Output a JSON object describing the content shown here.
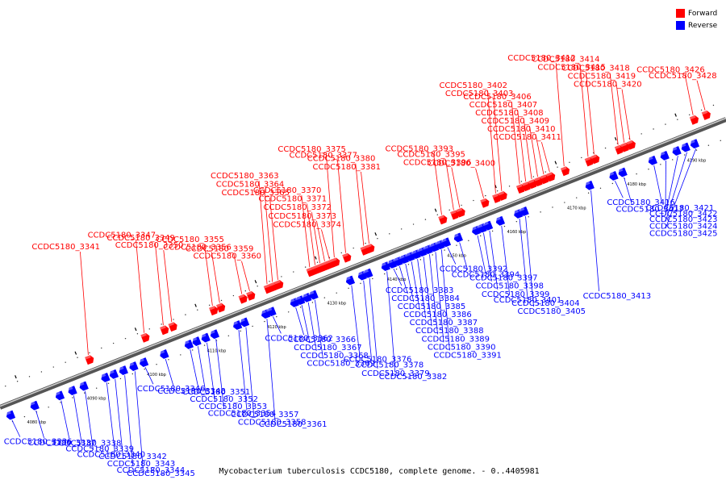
{
  "legend": {
    "forward": {
      "label": "Forward",
      "color": "#ff0000"
    },
    "reverse": {
      "label": "Reverse",
      "color": "#0000ff"
    }
  },
  "caption": "Mycobacterium tuberculosis CCDC5180, complete genome. - 0..4405981",
  "axis": {
    "start_kbp": 4076,
    "end_kbp": 4197,
    "tick_labels": [
      "4080 kbp",
      "4090 kbp",
      "4100 kbp",
      "4110 kbp",
      "4120 kbp",
      "4130 kbp",
      "4140 kbp",
      "4150 kbp",
      "4160 kbp",
      "4170 kbp",
      "4180 kbp",
      "4190 kbp"
    ]
  },
  "genes": [
    {
      "name": "CCDC5180_3336",
      "strand": "reverse",
      "kbp": 4077.0
    },
    {
      "name": "CCDC5180_3337",
      "strand": "reverse",
      "kbp": 4081.0
    },
    {
      "name": "CCDC5180_3338",
      "strand": "reverse",
      "kbp": 4085.2
    },
    {
      "name": "CCDC5180_3339",
      "strand": "reverse",
      "kbp": 4087.3
    },
    {
      "name": "CCDC5180_3340",
      "strand": "reverse",
      "kbp": 4089.2
    },
    {
      "name": "CCDC5180_3341",
      "strand": "forward",
      "kbp": 4091.7
    },
    {
      "name": "CCDC5180_3342",
      "strand": "reverse",
      "kbp": 4092.8
    },
    {
      "name": "CCDC5180_3343",
      "strand": "reverse",
      "kbp": 4094.2
    },
    {
      "name": "CCDC5180_3344",
      "strand": "reverse",
      "kbp": 4095.8
    },
    {
      "name": "CCDC5180_3345",
      "strand": "reverse",
      "kbp": 4097.5
    },
    {
      "name": "CCDC5180_3346",
      "strand": "reverse",
      "kbp": 4099.2
    },
    {
      "name": "CCDC5180_3347",
      "strand": "forward",
      "kbp": 4101.0
    },
    {
      "name": "CCDC5180_3348",
      "strand": "reverse",
      "kbp": 4102.6
    },
    {
      "name": "CCDC5180_3349",
      "strand": "forward",
      "kbp": 4104.2
    },
    {
      "name": "CCDC5180_3350",
      "strand": "forward",
      "kbp": 4105.6
    },
    {
      "name": "CCDC5180_3351",
      "strand": "reverse",
      "kbp": 4106.7
    },
    {
      "name": "CCDC5180_3352",
      "strand": "reverse",
      "kbp": 4108.0
    },
    {
      "name": "CCDC5180_3353",
      "strand": "reverse",
      "kbp": 4109.5
    },
    {
      "name": "CCDC5180_3354",
      "strand": "reverse",
      "kbp": 4111.0
    },
    {
      "name": "CCDC5180_3355",
      "strand": "forward",
      "kbp": 4112.4
    },
    {
      "name": "CCDC5180_3356",
      "strand": "forward",
      "kbp": 4113.6
    },
    {
      "name": "CCDC5180_3357",
      "strand": "reverse",
      "kbp": 4114.8
    },
    {
      "name": "CCDC5180_3358",
      "strand": "reverse",
      "kbp": 4116.0
    },
    {
      "name": "CCDC5180_3359",
      "strand": "forward",
      "kbp": 4117.3
    },
    {
      "name": "CCDC5180_3360",
      "strand": "forward",
      "kbp": 4118.6
    },
    {
      "name": "CCDC5180_3361",
      "strand": "reverse",
      "kbp": 4119.5
    },
    {
      "name": "CCDC5180_3362",
      "strand": "reverse",
      "kbp": 4120.5
    },
    {
      "name": "CCDC5180_3363",
      "strand": "forward",
      "kbp": 4121.5
    },
    {
      "name": "CCDC5180_3364",
      "strand": "forward",
      "kbp": 4122.4
    },
    {
      "name": "CCDC5180_3365",
      "strand": "forward",
      "kbp": 4123.3
    },
    {
      "name": "CCDC5180_3366",
      "strand": "reverse",
      "kbp": 4124.3
    },
    {
      "name": "CCDC5180_3367",
      "strand": "reverse",
      "kbp": 4125.3
    },
    {
      "name": "CCDC5180_3368",
      "strand": "reverse",
      "kbp": 4126.4
    },
    {
      "name": "CCDC5180_3369",
      "strand": "reverse",
      "kbp": 4127.5
    },
    {
      "name": "CCDC5180_3370",
      "strand": "forward",
      "kbp": 4128.6
    },
    {
      "name": "CCDC5180_3371",
      "strand": "forward",
      "kbp": 4129.5
    },
    {
      "name": "CCDC5180_3372",
      "strand": "forward",
      "kbp": 4130.3
    },
    {
      "name": "CCDC5180_3373",
      "strand": "forward",
      "kbp": 4131.1
    },
    {
      "name": "CCDC5180_3374",
      "strand": "forward",
      "kbp": 4131.9
    },
    {
      "name": "CCDC5180_3375",
      "strand": "forward",
      "kbp": 4132.7
    },
    {
      "name": "CCDC5180_3376",
      "strand": "reverse",
      "kbp": 4133.6
    },
    {
      "name": "CCDC5180_3377",
      "strand": "forward",
      "kbp": 4134.6
    },
    {
      "name": "CCDC5180_3378",
      "strand": "reverse",
      "kbp": 4135.6
    },
    {
      "name": "CCDC5180_3379",
      "strand": "reverse",
      "kbp": 4136.6
    },
    {
      "name": "CCDC5180_3380",
      "strand": "forward",
      "kbp": 4137.6
    },
    {
      "name": "CCDC5180_3381",
      "strand": "forward",
      "kbp": 4138.5
    },
    {
      "name": "CCDC5180_3382",
      "strand": "reverse",
      "kbp": 4139.5
    },
    {
      "name": "CCDC5180_3383",
      "strand": "reverse",
      "kbp": 4140.6
    },
    {
      "name": "CCDC5180_3384",
      "strand": "reverse",
      "kbp": 4141.6
    },
    {
      "name": "CCDC5180_3385",
      "strand": "reverse",
      "kbp": 4142.6
    },
    {
      "name": "CCDC5180_3386",
      "strand": "reverse",
      "kbp": 4143.6
    },
    {
      "name": "CCDC5180_3387",
      "strand": "reverse",
      "kbp": 4144.6
    },
    {
      "name": "CCDC5180_3388",
      "strand": "reverse",
      "kbp": 4145.6
    },
    {
      "name": "CCDC5180_3389",
      "strand": "reverse",
      "kbp": 4146.6
    },
    {
      "name": "CCDC5180_3390",
      "strand": "reverse",
      "kbp": 4147.6
    },
    {
      "name": "CCDC5180_3391",
      "strand": "reverse",
      "kbp": 4148.6
    },
    {
      "name": "CCDC5180_3392",
      "strand": "reverse",
      "kbp": 4149.6
    },
    {
      "name": "CCDC5180_3393",
      "strand": "forward",
      "kbp": 4150.6
    },
    {
      "name": "CCDC5180_3394",
      "strand": "reverse",
      "kbp": 4151.6
    },
    {
      "name": "CCDC5180_3395",
      "strand": "forward",
      "kbp": 4152.6
    },
    {
      "name": "CCDC5180_3396",
      "strand": "forward",
      "kbp": 4153.6
    },
    {
      "name": "CCDC5180_3397",
      "strand": "reverse",
      "kbp": 4154.6
    },
    {
      "name": "CCDC5180_3398",
      "strand": "reverse",
      "kbp": 4155.6
    },
    {
      "name": "CCDC5180_3399",
      "strand": "reverse",
      "kbp": 4156.6
    },
    {
      "name": "CCDC5180_3400",
      "strand": "forward",
      "kbp": 4157.6
    },
    {
      "name": "CCDC5180_3401",
      "strand": "reverse",
      "kbp": 4158.6
    },
    {
      "name": "CCDC5180_3402",
      "strand": "forward",
      "kbp": 4159.6
    },
    {
      "name": "CCDC5180_3403",
      "strand": "forward",
      "kbp": 4160.6
    },
    {
      "name": "CCDC5180_3404",
      "strand": "reverse",
      "kbp": 4161.6
    },
    {
      "name": "CCDC5180_3405",
      "strand": "reverse",
      "kbp": 4162.6
    },
    {
      "name": "CCDC5180_3406",
      "strand": "forward",
      "kbp": 4163.6
    },
    {
      "name": "CCDC5180_3407",
      "strand": "forward",
      "kbp": 4164.6
    },
    {
      "name": "CCDC5180_3408",
      "strand": "forward",
      "kbp": 4165.6
    },
    {
      "name": "CCDC5180_3409",
      "strand": "forward",
      "kbp": 4166.6
    },
    {
      "name": "CCDC5180_3410",
      "strand": "forward",
      "kbp": 4167.6
    },
    {
      "name": "CCDC5180_3411",
      "strand": "forward",
      "kbp": 4168.6
    },
    {
      "name": "CCDC5180_3412",
      "strand": "forward",
      "kbp": 4171.0
    },
    {
      "name": "CCDC5180_3413",
      "strand": "reverse",
      "kbp": 4173.5
    },
    {
      "name": "CCDC5180_3414",
      "strand": "forward",
      "kbp": 4175.0
    },
    {
      "name": "CCDC5180_3415",
      "strand": "forward",
      "kbp": 4176.0
    },
    {
      "name": "CCDC5180_3416",
      "strand": "reverse",
      "kbp": 4177.5
    },
    {
      "name": "CCDC5180_3417",
      "strand": "reverse",
      "kbp": 4179.0
    },
    {
      "name": "CCDC5180_3418",
      "strand": "forward",
      "kbp": 4180.0
    },
    {
      "name": "CCDC5180_3419",
      "strand": "forward",
      "kbp": 4181.0
    },
    {
      "name": "CCDC5180_3420",
      "strand": "forward",
      "kbp": 4182.0
    },
    {
      "name": "CCDC5180_3421",
      "strand": "reverse",
      "kbp": 4184.0
    },
    {
      "name": "CCDC5180_3422",
      "strand": "reverse",
      "kbp": 4186.0
    },
    {
      "name": "CCDC5180_3423",
      "strand": "reverse",
      "kbp": 4188.0
    },
    {
      "name": "CCDC5180_3424",
      "strand": "reverse",
      "kbp": 4189.5
    },
    {
      "name": "CCDC5180_3425",
      "strand": "reverse",
      "kbp": 4191.0
    },
    {
      "name": "CCDC5180_3426",
      "strand": "forward",
      "kbp": 4192.5
    },
    {
      "name": "CCDC5180_3428",
      "strand": "forward",
      "kbp": 4194.5
    }
  ]
}
